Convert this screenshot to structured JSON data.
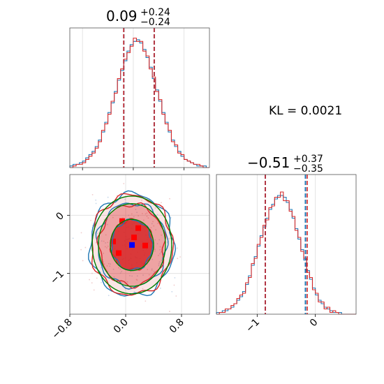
{
  "chart_data": [
    {
      "type": "histogram",
      "panel": "marginal-x",
      "title": {
        "main": "0.09",
        "sup": "+0.24",
        "sub": "−0.24"
      },
      "xlim": [
        -1.0,
        1.2
      ],
      "grid": true,
      "quantiles": [
        -0.15,
        0.09,
        0.33
      ],
      "series": [
        {
          "name": "",
          "color": "#1f77b4",
          "bins": [
            -1.0,
            0.05
          ],
          "counts": [
            1,
            2,
            2,
            3,
            4,
            6,
            8,
            10,
            13,
            17,
            22,
            28,
            34,
            40,
            47,
            54,
            60,
            66,
            72,
            76,
            78,
            79,
            77,
            73,
            68,
            62,
            55,
            48,
            41,
            34,
            28,
            22,
            17,
            13,
            10,
            7,
            5,
            4,
            3,
            2,
            1,
            1,
            1,
            0
          ]
        },
        {
          "name": "",
          "color": "#d62728",
          "bins": [
            -1.0,
            0.05
          ],
          "counts": [
            0,
            1,
            2,
            2,
            3,
            5,
            7,
            9,
            12,
            16,
            23,
            27,
            33,
            41,
            46,
            55,
            61,
            67,
            71,
            75,
            80,
            78,
            78,
            72,
            69,
            61,
            56,
            47,
            42,
            33,
            27,
            23,
            16,
            14,
            9,
            8,
            5,
            4,
            3,
            2,
            2,
            1,
            0,
            0
          ]
        }
      ]
    },
    {
      "type": "contour",
      "panel": "joint",
      "xlim": [
        -0.8,
        1.2
      ],
      "ylim": [
        -1.7,
        0.7
      ],
      "xticks": [
        "−0.8",
        "0.0",
        "0.8"
      ],
      "yticks": [
        "0",
        "−1"
      ],
      "grid": true,
      "center": [
        0.09,
        -0.51
      ],
      "levels": [
        {
          "color": "#1f77b4",
          "rx": 0.6,
          "ry": 0.88
        },
        {
          "color": "#d62728",
          "rx": 0.58,
          "ry": 0.86
        },
        {
          "color": "#008000",
          "rx": 0.57,
          "ry": 0.84
        },
        {
          "color": "#1f77b4",
          "rx": 0.5,
          "ry": 0.72
        },
        {
          "color": "#d62728",
          "rx": 0.47,
          "ry": 0.7
        },
        {
          "color": "#008000",
          "rx": 0.48,
          "ry": 0.71
        },
        {
          "color": "#d62728",
          "rx": 0.3,
          "ry": 0.43
        },
        {
          "color": "#1f77b4",
          "rx": 0.29,
          "ry": 0.43
        },
        {
          "color": "#008000",
          "rx": 0.31,
          "ry": 0.44
        }
      ],
      "fill_color": "#d62728",
      "peak_color": "#0000ff"
    },
    {
      "type": "histogram",
      "panel": "marginal-y",
      "title": {
        "main": "−0.51",
        "sup": "+0.37",
        "sub": "−0.35"
      },
      "xlim": [
        -1.7,
        0.7
      ],
      "xticks": [
        "−1",
        "0"
      ],
      "grid": true,
      "quantiles_blue": [
        -0.86,
        -0.51,
        -0.17
      ],
      "quantiles_red": [
        -0.86,
        -0.51,
        -0.14
      ],
      "series": [
        {
          "name": "",
          "color": "#1f77b4",
          "bins": [
            -1.7,
            0.05
          ],
          "counts": [
            1,
            1,
            2,
            2,
            3,
            4,
            6,
            8,
            10,
            13,
            17,
            22,
            28,
            33,
            39,
            45,
            50,
            55,
            60,
            63,
            66,
            68,
            68,
            67,
            64,
            60,
            55,
            49,
            43,
            37,
            31,
            25,
            20,
            15,
            11,
            8,
            6,
            4,
            3,
            2,
            1,
            1,
            1,
            0,
            0,
            0,
            0,
            0
          ]
        },
        {
          "name": "",
          "color": "#d62728",
          "bins": [
            -1.7,
            0.05
          ],
          "counts": [
            0,
            1,
            1,
            3,
            3,
            5,
            6,
            9,
            11,
            12,
            18,
            21,
            29,
            32,
            40,
            44,
            51,
            54,
            61,
            62,
            67,
            67,
            70,
            65,
            65,
            59,
            56,
            48,
            44,
            36,
            32,
            24,
            21,
            14,
            12,
            7,
            7,
            3,
            4,
            1,
            2,
            1,
            0,
            0,
            0,
            0,
            0,
            0
          ]
        }
      ]
    }
  ],
  "annotation": {
    "kl_label": "KL = 0.0021"
  }
}
